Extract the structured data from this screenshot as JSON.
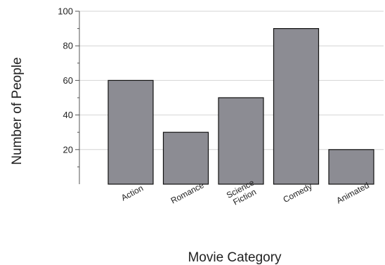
{
  "chart_data": {
    "type": "bar",
    "title": "",
    "xlabel": "Movie Category",
    "ylabel": "Number of People",
    "categories": [
      [
        "Action"
      ],
      [
        "Romance"
      ],
      [
        "Science",
        "Fiction"
      ],
      [
        "Comedy"
      ],
      [
        "Animated"
      ]
    ],
    "values": [
      60,
      30,
      50,
      90,
      20
    ],
    "ylim": [
      0,
      100
    ],
    "yticks": [
      20,
      40,
      60,
      80,
      100
    ],
    "minor_step": 10,
    "grid": true,
    "legend": "none",
    "colors": {
      "bar_fill": "#8c8c93",
      "bar_stroke": "#111111",
      "grid": "#d4d4d4"
    }
  }
}
